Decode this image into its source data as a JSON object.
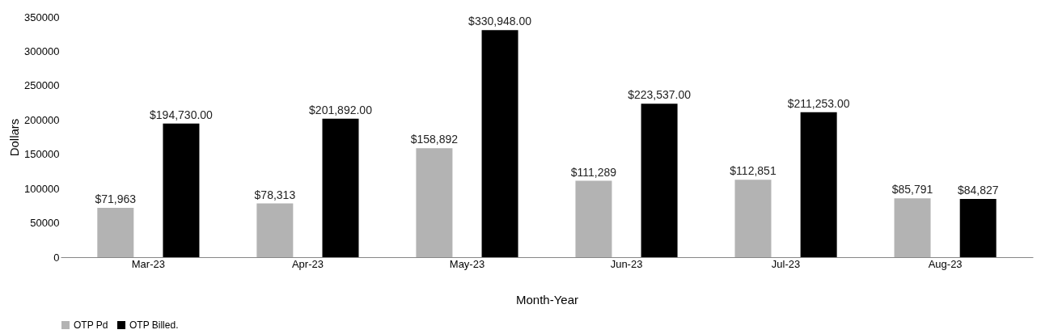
{
  "chart_data": {
    "type": "bar",
    "xlabel": "Month-Year",
    "ylabel": "Dollars",
    "categories": [
      "Mar-23",
      "Apr-23",
      "May-23",
      "Jun-23",
      "Jul-23",
      "Aug-23"
    ],
    "series": [
      {
        "name": "OTP Pd",
        "color": "#b3b3b3",
        "values": [
          71963,
          78313,
          158892,
          111289,
          112851,
          85791
        ],
        "value_labels": [
          "$71,963",
          "$78,313",
          "$158,892",
          "$111,289",
          "$112,851",
          "$85,791"
        ]
      },
      {
        "name": "OTP Billed.",
        "color": "#000000",
        "values": [
          194730,
          201892,
          330948,
          223537,
          211253,
          84827
        ],
        "value_labels": [
          "$194,730.00",
          "$201,892.00",
          "$330,948.00",
          "$223,537.00",
          "$211,253.00",
          "$84,827"
        ]
      }
    ],
    "ylim": [
      0,
      350000
    ],
    "yticks": [
      0,
      50000,
      100000,
      150000,
      200000,
      250000,
      300000,
      350000
    ],
    "grid": false,
    "legend": "bottom"
  }
}
